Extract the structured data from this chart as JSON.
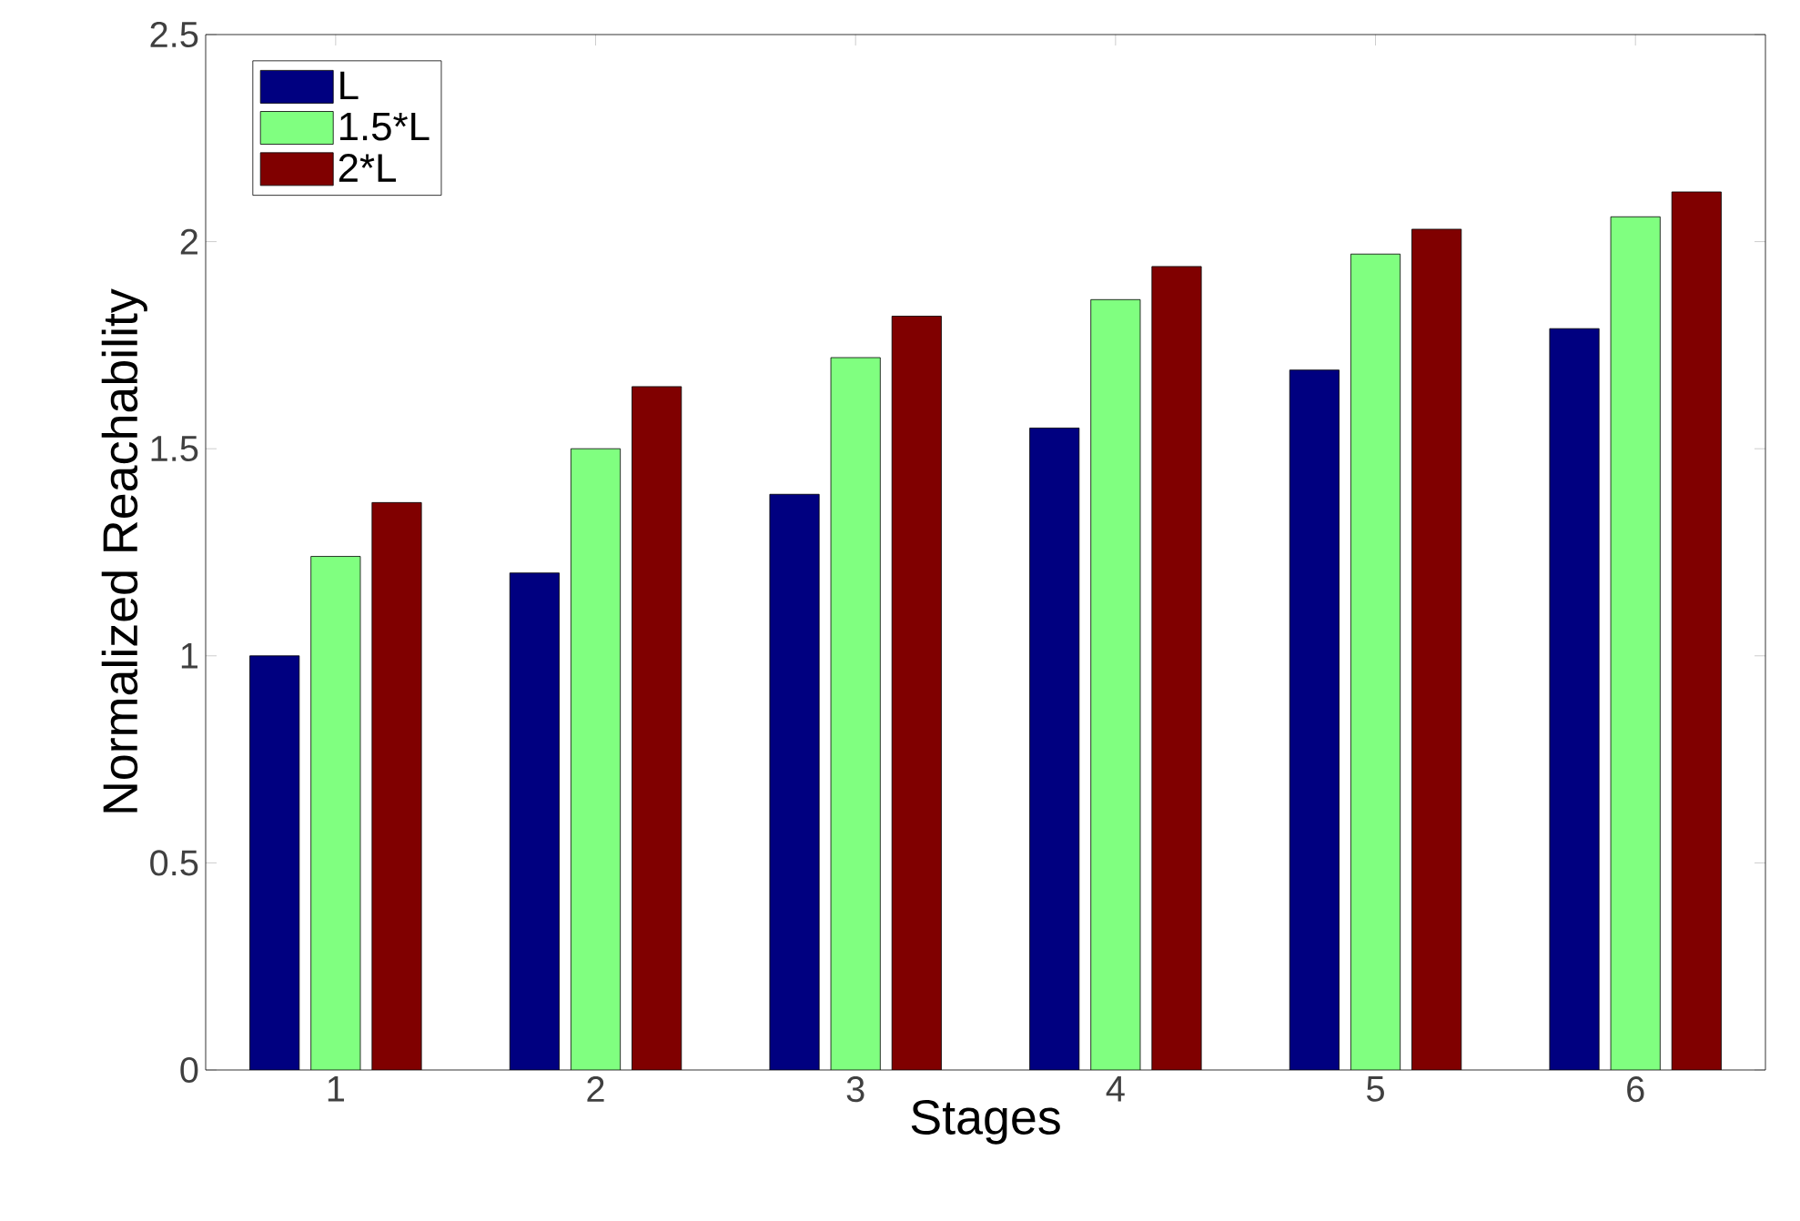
{
  "chart_data": {
    "type": "bar",
    "xlabel": "Stages",
    "ylabel": "Normalized Reachability",
    "categories": [
      "1",
      "2",
      "3",
      "4",
      "5",
      "6"
    ],
    "series": [
      {
        "name": "L",
        "color": "#000080",
        "values": [
          1.0,
          1.2,
          1.39,
          1.55,
          1.69,
          1.79
        ]
      },
      {
        "name": "1.5*L",
        "color": "#80ff80",
        "values": [
          1.24,
          1.5,
          1.72,
          1.86,
          1.97,
          2.06
        ]
      },
      {
        "name": "2*L",
        "color": "#800000",
        "values": [
          1.37,
          1.65,
          1.82,
          1.94,
          2.03,
          2.12
        ]
      }
    ],
    "ylim": [
      0,
      2.5
    ],
    "yticks": [
      0,
      0.5,
      1,
      1.5,
      2,
      2.5
    ],
    "legend": "top left",
    "grid": false
  }
}
